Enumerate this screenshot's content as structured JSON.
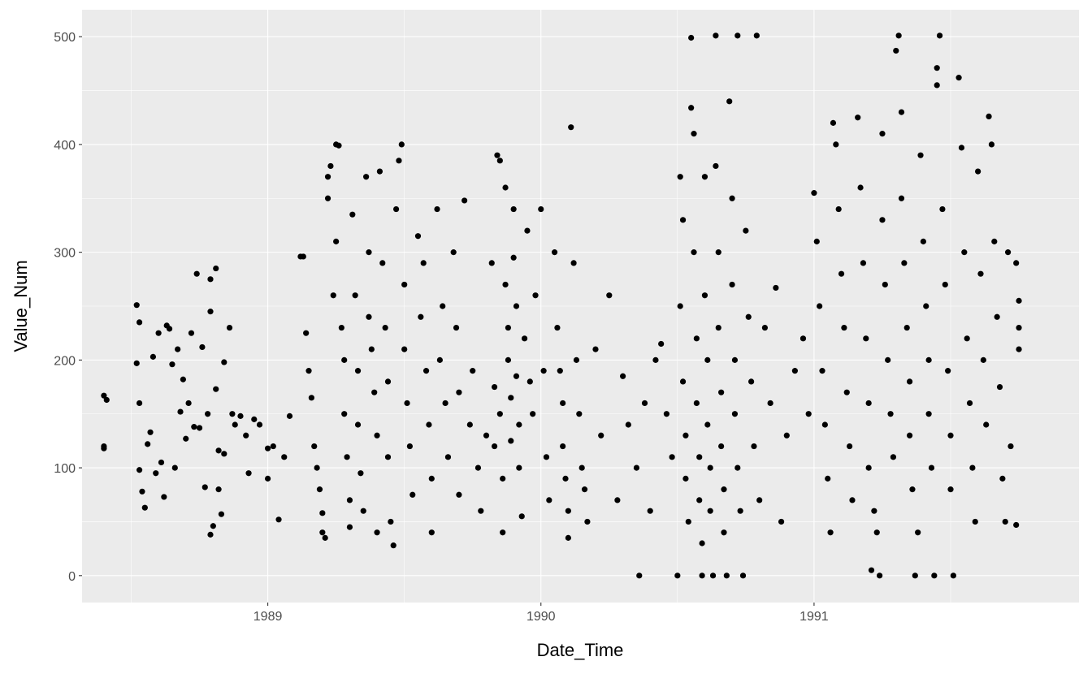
{
  "chart_data": {
    "type": "scatter",
    "title": "",
    "xlabel": "Date_Time",
    "ylabel": "Value_Num",
    "xlim": [
      1988.32,
      1991.97
    ],
    "ylim": [
      -25,
      525
    ],
    "x_ticks": [
      1989,
      1990,
      1991
    ],
    "x_tick_labels": [
      "1989",
      "1990",
      "1991"
    ],
    "y_ticks": [
      0,
      100,
      200,
      300,
      400,
      500
    ],
    "y_tick_labels": [
      "0",
      "100",
      "200",
      "300",
      "400",
      "500"
    ],
    "grid": true,
    "panel_background": "#ebebeb",
    "point_color": "#000000",
    "legend": "none",
    "points": [
      [
        1988.4,
        120
      ],
      [
        1988.4,
        118
      ],
      [
        1988.4,
        167
      ],
      [
        1988.41,
        163
      ],
      [
        1988.52,
        251
      ],
      [
        1988.53,
        235
      ],
      [
        1988.52,
        197
      ],
      [
        1988.53,
        160
      ],
      [
        1988.53,
        98
      ],
      [
        1988.54,
        78
      ],
      [
        1988.55,
        63
      ],
      [
        1988.56,
        122
      ],
      [
        1988.57,
        133
      ],
      [
        1988.58,
        203
      ],
      [
        1988.59,
        95
      ],
      [
        1988.6,
        225
      ],
      [
        1988.61,
        105
      ],
      [
        1988.62,
        73
      ],
      [
        1988.63,
        232
      ],
      [
        1988.64,
        229
      ],
      [
        1988.65,
        196
      ],
      [
        1988.66,
        100
      ],
      [
        1988.67,
        210
      ],
      [
        1988.68,
        152
      ],
      [
        1988.69,
        182
      ],
      [
        1988.7,
        127
      ],
      [
        1988.71,
        160
      ],
      [
        1988.72,
        225
      ],
      [
        1988.73,
        138
      ],
      [
        1988.74,
        280
      ],
      [
        1988.75,
        137
      ],
      [
        1988.76,
        212
      ],
      [
        1988.77,
        82
      ],
      [
        1988.78,
        150
      ],
      [
        1988.79,
        245
      ],
      [
        1988.79,
        275
      ],
      [
        1988.79,
        38
      ],
      [
        1988.8,
        46
      ],
      [
        1988.81,
        285
      ],
      [
        1988.81,
        173
      ],
      [
        1988.82,
        80
      ],
      [
        1988.82,
        116
      ],
      [
        1988.83,
        57
      ],
      [
        1988.84,
        198
      ],
      [
        1988.84,
        113
      ],
      [
        1988.86,
        230
      ],
      [
        1988.87,
        150
      ],
      [
        1988.88,
        140
      ],
      [
        1988.9,
        148
      ],
      [
        1988.92,
        130
      ],
      [
        1988.93,
        95
      ],
      [
        1988.95,
        145
      ],
      [
        1988.97,
        140
      ],
      [
        1989.0,
        118
      ],
      [
        1989.0,
        90
      ],
      [
        1989.02,
        120
      ],
      [
        1989.04,
        52
      ],
      [
        1989.06,
        110
      ],
      [
        1989.08,
        148
      ],
      [
        1989.12,
        296
      ],
      [
        1989.13,
        296
      ],
      [
        1989.14,
        225
      ],
      [
        1989.15,
        190
      ],
      [
        1989.16,
        165
      ],
      [
        1989.17,
        120
      ],
      [
        1989.18,
        100
      ],
      [
        1989.19,
        80
      ],
      [
        1989.2,
        58
      ],
      [
        1989.2,
        40
      ],
      [
        1989.21,
        35
      ],
      [
        1989.22,
        370
      ],
      [
        1989.22,
        350
      ],
      [
        1989.23,
        380
      ],
      [
        1989.24,
        260
      ],
      [
        1989.25,
        310
      ],
      [
        1989.25,
        400
      ],
      [
        1989.26,
        399
      ],
      [
        1989.27,
        230
      ],
      [
        1989.28,
        200
      ],
      [
        1989.28,
        150
      ],
      [
        1989.29,
        110
      ],
      [
        1989.3,
        70
      ],
      [
        1989.3,
        45
      ],
      [
        1989.31,
        335
      ],
      [
        1989.32,
        260
      ],
      [
        1989.33,
        190
      ],
      [
        1989.33,
        140
      ],
      [
        1989.34,
        95
      ],
      [
        1989.35,
        60
      ],
      [
        1989.36,
        370
      ],
      [
        1989.37,
        300
      ],
      [
        1989.37,
        240
      ],
      [
        1989.38,
        210
      ],
      [
        1989.39,
        170
      ],
      [
        1989.4,
        130
      ],
      [
        1989.4,
        40
      ],
      [
        1989.41,
        375
      ],
      [
        1989.42,
        290
      ],
      [
        1989.43,
        230
      ],
      [
        1989.44,
        180
      ],
      [
        1989.44,
        110
      ],
      [
        1989.45,
        50
      ],
      [
        1989.46,
        28
      ],
      [
        1989.47,
        340
      ],
      [
        1989.48,
        385
      ],
      [
        1989.49,
        400
      ],
      [
        1989.5,
        270
      ],
      [
        1989.5,
        210
      ],
      [
        1989.51,
        160
      ],
      [
        1989.52,
        120
      ],
      [
        1989.53,
        75
      ],
      [
        1989.55,
        315
      ],
      [
        1989.56,
        240
      ],
      [
        1989.57,
        290
      ],
      [
        1989.58,
        190
      ],
      [
        1989.59,
        140
      ],
      [
        1989.6,
        90
      ],
      [
        1989.6,
        40
      ],
      [
        1989.62,
        340
      ],
      [
        1989.63,
        200
      ],
      [
        1989.64,
        250
      ],
      [
        1989.65,
        160
      ],
      [
        1989.66,
        110
      ],
      [
        1989.68,
        300
      ],
      [
        1989.69,
        230
      ],
      [
        1989.7,
        170
      ],
      [
        1989.7,
        75
      ],
      [
        1989.72,
        348
      ],
      [
        1989.74,
        140
      ],
      [
        1989.75,
        190
      ],
      [
        1989.77,
        100
      ],
      [
        1989.78,
        60
      ],
      [
        1989.8,
        130
      ],
      [
        1989.82,
        290
      ],
      [
        1989.83,
        175
      ],
      [
        1989.83,
        120
      ],
      [
        1989.84,
        390
      ],
      [
        1989.85,
        385
      ],
      [
        1989.85,
        150
      ],
      [
        1989.86,
        90
      ],
      [
        1989.86,
        40
      ],
      [
        1989.87,
        360
      ],
      [
        1989.87,
        270
      ],
      [
        1989.88,
        230
      ],
      [
        1989.88,
        200
      ],
      [
        1989.89,
        165
      ],
      [
        1989.89,
        125
      ],
      [
        1989.9,
        340
      ],
      [
        1989.9,
        295
      ],
      [
        1989.91,
        250
      ],
      [
        1989.91,
        185
      ],
      [
        1989.92,
        140
      ],
      [
        1989.92,
        100
      ],
      [
        1989.93,
        55
      ],
      [
        1989.94,
        220
      ],
      [
        1989.95,
        320
      ],
      [
        1989.96,
        180
      ],
      [
        1989.97,
        150
      ],
      [
        1989.98,
        260
      ],
      [
        1990.0,
        340
      ],
      [
        1990.01,
        190
      ],
      [
        1990.02,
        110
      ],
      [
        1990.03,
        70
      ],
      [
        1990.05,
        300
      ],
      [
        1990.06,
        230
      ],
      [
        1990.07,
        190
      ],
      [
        1990.08,
        160
      ],
      [
        1990.08,
        120
      ],
      [
        1990.09,
        90
      ],
      [
        1990.1,
        60
      ],
      [
        1990.1,
        35
      ],
      [
        1990.11,
        416
      ],
      [
        1990.12,
        290
      ],
      [
        1990.13,
        200
      ],
      [
        1990.14,
        150
      ],
      [
        1990.15,
        100
      ],
      [
        1990.16,
        80
      ],
      [
        1990.17,
        50
      ],
      [
        1990.2,
        210
      ],
      [
        1990.22,
        130
      ],
      [
        1990.25,
        260
      ],
      [
        1990.28,
        70
      ],
      [
        1990.3,
        185
      ],
      [
        1990.32,
        140
      ],
      [
        1990.35,
        100
      ],
      [
        1990.36,
        0
      ],
      [
        1990.38,
        160
      ],
      [
        1990.4,
        60
      ],
      [
        1990.42,
        200
      ],
      [
        1990.44,
        215
      ],
      [
        1990.46,
        150
      ],
      [
        1990.48,
        110
      ],
      [
        1990.5,
        0
      ],
      [
        1990.51,
        250
      ],
      [
        1990.51,
        370
      ],
      [
        1990.52,
        330
      ],
      [
        1990.52,
        180
      ],
      [
        1990.53,
        130
      ],
      [
        1990.53,
        90
      ],
      [
        1990.54,
        50
      ],
      [
        1990.55,
        499
      ],
      [
        1990.55,
        434
      ],
      [
        1990.56,
        410
      ],
      [
        1990.56,
        300
      ],
      [
        1990.57,
        220
      ],
      [
        1990.57,
        160
      ],
      [
        1990.58,
        110
      ],
      [
        1990.58,
        70
      ],
      [
        1990.59,
        30
      ],
      [
        1990.59,
        0
      ],
      [
        1990.6,
        370
      ],
      [
        1990.6,
        260
      ],
      [
        1990.61,
        200
      ],
      [
        1990.61,
        140
      ],
      [
        1990.62,
        100
      ],
      [
        1990.62,
        60
      ],
      [
        1990.63,
        0
      ],
      [
        1990.64,
        501
      ],
      [
        1990.64,
        380
      ],
      [
        1990.65,
        300
      ],
      [
        1990.65,
        230
      ],
      [
        1990.66,
        170
      ],
      [
        1990.66,
        120
      ],
      [
        1990.67,
        80
      ],
      [
        1990.67,
        40
      ],
      [
        1990.68,
        0
      ],
      [
        1990.69,
        440
      ],
      [
        1990.7,
        350
      ],
      [
        1990.7,
        270
      ],
      [
        1990.71,
        200
      ],
      [
        1990.71,
        150
      ],
      [
        1990.72,
        501
      ],
      [
        1990.72,
        100
      ],
      [
        1990.73,
        60
      ],
      [
        1990.74,
        0
      ],
      [
        1990.75,
        320
      ],
      [
        1990.76,
        240
      ],
      [
        1990.77,
        180
      ],
      [
        1990.78,
        120
      ],
      [
        1990.79,
        501
      ],
      [
        1990.8,
        70
      ],
      [
        1990.82,
        230
      ],
      [
        1990.84,
        160
      ],
      [
        1990.86,
        267
      ],
      [
        1990.88,
        50
      ],
      [
        1990.9,
        130
      ],
      [
        1990.93,
        190
      ],
      [
        1990.96,
        220
      ],
      [
        1990.98,
        150
      ],
      [
        1991.0,
        355
      ],
      [
        1991.01,
        310
      ],
      [
        1991.02,
        250
      ],
      [
        1991.03,
        190
      ],
      [
        1991.04,
        140
      ],
      [
        1991.05,
        90
      ],
      [
        1991.06,
        40
      ],
      [
        1991.07,
        420
      ],
      [
        1991.08,
        400
      ],
      [
        1991.09,
        340
      ],
      [
        1991.1,
        280
      ],
      [
        1991.11,
        230
      ],
      [
        1991.12,
        170
      ],
      [
        1991.13,
        120
      ],
      [
        1991.14,
        70
      ],
      [
        1991.16,
        425
      ],
      [
        1991.17,
        360
      ],
      [
        1991.18,
        290
      ],
      [
        1991.19,
        220
      ],
      [
        1991.2,
        160
      ],
      [
        1991.2,
        100
      ],
      [
        1991.21,
        5
      ],
      [
        1991.22,
        60
      ],
      [
        1991.23,
        40
      ],
      [
        1991.24,
        0
      ],
      [
        1991.25,
        410
      ],
      [
        1991.25,
        330
      ],
      [
        1991.26,
        270
      ],
      [
        1991.27,
        200
      ],
      [
        1991.28,
        150
      ],
      [
        1991.29,
        110
      ],
      [
        1991.3,
        487
      ],
      [
        1991.31,
        501
      ],
      [
        1991.32,
        430
      ],
      [
        1991.32,
        350
      ],
      [
        1991.33,
        290
      ],
      [
        1991.34,
        230
      ],
      [
        1991.35,
        180
      ],
      [
        1991.35,
        130
      ],
      [
        1991.36,
        80
      ],
      [
        1991.37,
        0
      ],
      [
        1991.38,
        40
      ],
      [
        1991.39,
        390
      ],
      [
        1991.4,
        310
      ],
      [
        1991.41,
        250
      ],
      [
        1991.42,
        200
      ],
      [
        1991.42,
        150
      ],
      [
        1991.43,
        100
      ],
      [
        1991.44,
        0
      ],
      [
        1991.45,
        471
      ],
      [
        1991.45,
        455
      ],
      [
        1991.46,
        501
      ],
      [
        1991.47,
        340
      ],
      [
        1991.48,
        270
      ],
      [
        1991.49,
        190
      ],
      [
        1991.5,
        130
      ],
      [
        1991.5,
        80
      ],
      [
        1991.51,
        0
      ],
      [
        1991.53,
        462
      ],
      [
        1991.54,
        397
      ],
      [
        1991.55,
        300
      ],
      [
        1991.56,
        220
      ],
      [
        1991.57,
        160
      ],
      [
        1991.58,
        100
      ],
      [
        1991.59,
        50
      ],
      [
        1991.6,
        375
      ],
      [
        1991.61,
        280
      ],
      [
        1991.62,
        200
      ],
      [
        1991.63,
        140
      ],
      [
        1991.64,
        426
      ],
      [
        1991.65,
        400
      ],
      [
        1991.66,
        310
      ],
      [
        1991.67,
        240
      ],
      [
        1991.68,
        175
      ],
      [
        1991.69,
        90
      ],
      [
        1991.7,
        50
      ],
      [
        1991.71,
        300
      ],
      [
        1991.72,
        120
      ],
      [
        1991.74,
        290
      ],
      [
        1991.75,
        255
      ],
      [
        1991.75,
        230
      ],
      [
        1991.75,
        210
      ],
      [
        1991.74,
        47
      ]
    ]
  }
}
